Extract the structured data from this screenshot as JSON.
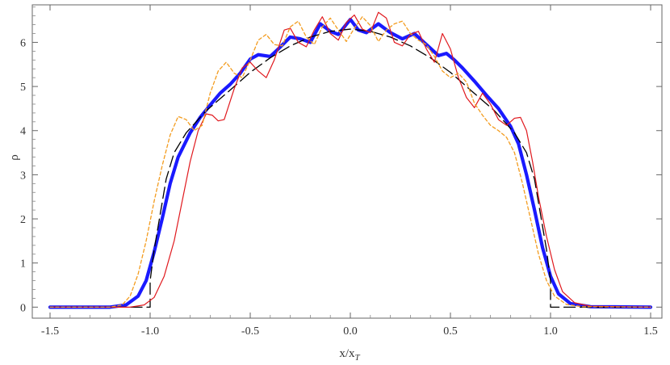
{
  "chart_data": {
    "type": "line",
    "title": "",
    "xlabel": "x/x",
    "xlabel_sub": "T",
    "ylabel": "ρ",
    "xlim": [
      -1.5,
      1.5
    ],
    "ylim": [
      -0.25,
      6.85
    ],
    "x_ticks": [
      -1.5,
      -1.0,
      -0.5,
      0.0,
      0.5,
      1.0,
      1.5
    ],
    "x_tick_labels": [
      "-1.5",
      "-1.0",
      "-0.5",
      "0.0",
      "0.5",
      "1.0",
      "1.5"
    ],
    "y_ticks": [
      0,
      1,
      2,
      3,
      4,
      5,
      6
    ],
    "y_tick_labels": [
      "0",
      "1",
      "2",
      "3",
      "4",
      "5",
      "6"
    ],
    "grid": false,
    "series": [
      {
        "style": "dashed-black",
        "color": "#000000",
        "points": [
          [
            -1.5,
            0
          ],
          [
            -1.08,
            0
          ],
          [
            -1.0,
            0
          ],
          [
            -1.0,
            0.6
          ],
          [
            -0.98,
            1.3
          ],
          [
            -0.95,
            2.1
          ],
          [
            -0.92,
            2.9
          ],
          [
            -0.88,
            3.5
          ],
          [
            -0.82,
            3.95
          ],
          [
            -0.72,
            4.45
          ],
          [
            -0.6,
            4.92
          ],
          [
            -0.5,
            5.32
          ],
          [
            -0.4,
            5.65
          ],
          [
            -0.3,
            5.92
          ],
          [
            -0.2,
            6.12
          ],
          [
            -0.1,
            6.25
          ],
          [
            0,
            6.3
          ],
          [
            0.1,
            6.25
          ],
          [
            0.2,
            6.12
          ],
          [
            0.3,
            5.92
          ],
          [
            0.4,
            5.65
          ],
          [
            0.5,
            5.32
          ],
          [
            0.6,
            4.92
          ],
          [
            0.72,
            4.45
          ],
          [
            0.82,
            3.95
          ],
          [
            0.88,
            3.5
          ],
          [
            0.92,
            2.9
          ],
          [
            0.95,
            2.1
          ],
          [
            0.98,
            1.3
          ],
          [
            1.0,
            0.6
          ],
          [
            1.0,
            0
          ],
          [
            1.08,
            0
          ],
          [
            1.5,
            0
          ]
        ]
      },
      {
        "style": "solid-blue-thick",
        "color": "#1a1aff",
        "points": [
          [
            -1.5,
            0
          ],
          [
            -1.2,
            0
          ],
          [
            -1.12,
            0.05
          ],
          [
            -1.06,
            0.25
          ],
          [
            -1.02,
            0.6
          ],
          [
            -0.98,
            1.25
          ],
          [
            -0.94,
            2.0
          ],
          [
            -0.9,
            2.8
          ],
          [
            -0.86,
            3.4
          ],
          [
            -0.8,
            3.95
          ],
          [
            -0.75,
            4.3
          ],
          [
            -0.7,
            4.58
          ],
          [
            -0.65,
            4.85
          ],
          [
            -0.6,
            5.05
          ],
          [
            -0.55,
            5.3
          ],
          [
            -0.5,
            5.62
          ],
          [
            -0.46,
            5.72
          ],
          [
            -0.4,
            5.68
          ],
          [
            -0.36,
            5.85
          ],
          [
            -0.3,
            6.12
          ],
          [
            -0.25,
            6.08
          ],
          [
            -0.2,
            6.0
          ],
          [
            -0.15,
            6.42
          ],
          [
            -0.1,
            6.25
          ],
          [
            -0.06,
            6.18
          ],
          [
            0,
            6.52
          ],
          [
            0.04,
            6.28
          ],
          [
            0.08,
            6.22
          ],
          [
            0.14,
            6.42
          ],
          [
            0.2,
            6.22
          ],
          [
            0.26,
            6.08
          ],
          [
            0.32,
            6.2
          ],
          [
            0.38,
            5.95
          ],
          [
            0.44,
            5.7
          ],
          [
            0.48,
            5.75
          ],
          [
            0.52,
            5.6
          ],
          [
            0.56,
            5.42
          ],
          [
            0.62,
            5.12
          ],
          [
            0.68,
            4.8
          ],
          [
            0.74,
            4.5
          ],
          [
            0.8,
            4.1
          ],
          [
            0.84,
            3.7
          ],
          [
            0.88,
            3.0
          ],
          [
            0.92,
            2.2
          ],
          [
            0.96,
            1.35
          ],
          [
            1.0,
            0.7
          ],
          [
            1.04,
            0.3
          ],
          [
            1.1,
            0.08
          ],
          [
            1.2,
            0.01
          ],
          [
            1.5,
            0
          ]
        ]
      },
      {
        "style": "solid-red",
        "color": "#e0191e",
        "points": [
          [
            -1.5,
            0
          ],
          [
            -1.1,
            0
          ],
          [
            -1.03,
            0.05
          ],
          [
            -0.98,
            0.22
          ],
          [
            -0.93,
            0.7
          ],
          [
            -0.88,
            1.5
          ],
          [
            -0.84,
            2.4
          ],
          [
            -0.8,
            3.3
          ],
          [
            -0.76,
            4.0
          ],
          [
            -0.72,
            4.38
          ],
          [
            -0.69,
            4.35
          ],
          [
            -0.66,
            4.22
          ],
          [
            -0.63,
            4.25
          ],
          [
            -0.58,
            4.95
          ],
          [
            -0.54,
            5.42
          ],
          [
            -0.5,
            5.55
          ],
          [
            -0.46,
            5.35
          ],
          [
            -0.42,
            5.2
          ],
          [
            -0.38,
            5.6
          ],
          [
            -0.33,
            6.28
          ],
          [
            -0.3,
            6.32
          ],
          [
            -0.26,
            6.0
          ],
          [
            -0.22,
            5.9
          ],
          [
            -0.18,
            6.28
          ],
          [
            -0.14,
            6.58
          ],
          [
            -0.1,
            6.2
          ],
          [
            -0.06,
            6.05
          ],
          [
            -0.02,
            6.45
          ],
          [
            0.02,
            6.62
          ],
          [
            0.06,
            6.3
          ],
          [
            0.1,
            6.22
          ],
          [
            0.14,
            6.68
          ],
          [
            0.18,
            6.55
          ],
          [
            0.22,
            6.0
          ],
          [
            0.26,
            5.92
          ],
          [
            0.3,
            6.18
          ],
          [
            0.34,
            6.25
          ],
          [
            0.38,
            5.85
          ],
          [
            0.42,
            5.55
          ],
          [
            0.46,
            6.2
          ],
          [
            0.5,
            5.85
          ],
          [
            0.54,
            5.2
          ],
          [
            0.58,
            4.75
          ],
          [
            0.62,
            4.52
          ],
          [
            0.66,
            4.85
          ],
          [
            0.7,
            4.6
          ],
          [
            0.74,
            4.25
          ],
          [
            0.78,
            4.12
          ],
          [
            0.82,
            4.28
          ],
          [
            0.85,
            4.3
          ],
          [
            0.88,
            4.0
          ],
          [
            0.91,
            3.3
          ],
          [
            0.94,
            2.5
          ],
          [
            0.98,
            1.6
          ],
          [
            1.02,
            0.85
          ],
          [
            1.06,
            0.35
          ],
          [
            1.12,
            0.1
          ],
          [
            1.2,
            0.02
          ],
          [
            1.5,
            0
          ]
        ]
      },
      {
        "style": "dashed-orange",
        "color": "#f39c1f",
        "points": [
          [
            -1.5,
            0
          ],
          [
            -1.2,
            0
          ],
          [
            -1.14,
            0.05
          ],
          [
            -1.1,
            0.25
          ],
          [
            -1.06,
            0.75
          ],
          [
            -1.02,
            1.5
          ],
          [
            -0.98,
            2.4
          ],
          [
            -0.94,
            3.2
          ],
          [
            -0.9,
            3.9
          ],
          [
            -0.86,
            4.32
          ],
          [
            -0.82,
            4.25
          ],
          [
            -0.78,
            4.0
          ],
          [
            -0.74,
            4.12
          ],
          [
            -0.7,
            4.85
          ],
          [
            -0.66,
            5.35
          ],
          [
            -0.62,
            5.55
          ],
          [
            -0.58,
            5.3
          ],
          [
            -0.54,
            5.2
          ],
          [
            -0.5,
            5.6
          ],
          [
            -0.46,
            6.05
          ],
          [
            -0.42,
            6.18
          ],
          [
            -0.38,
            5.95
          ],
          [
            -0.34,
            5.92
          ],
          [
            -0.3,
            6.35
          ],
          [
            -0.26,
            6.48
          ],
          [
            -0.22,
            6.12
          ],
          [
            -0.18,
            5.95
          ],
          [
            -0.14,
            6.35
          ],
          [
            -0.1,
            6.55
          ],
          [
            -0.06,
            6.28
          ],
          [
            -0.02,
            6.02
          ],
          [
            0.02,
            6.32
          ],
          [
            0.06,
            6.58
          ],
          [
            0.1,
            6.38
          ],
          [
            0.14,
            6.02
          ],
          [
            0.18,
            6.28
          ],
          [
            0.22,
            6.42
          ],
          [
            0.26,
            6.48
          ],
          [
            0.3,
            6.2
          ],
          [
            0.34,
            6.05
          ],
          [
            0.38,
            5.95
          ],
          [
            0.42,
            5.68
          ],
          [
            0.46,
            5.35
          ],
          [
            0.5,
            5.2
          ],
          [
            0.54,
            5.3
          ],
          [
            0.58,
            5.1
          ],
          [
            0.62,
            4.62
          ],
          [
            0.66,
            4.35
          ],
          [
            0.7,
            4.12
          ],
          [
            0.74,
            4.0
          ],
          [
            0.78,
            3.85
          ],
          [
            0.82,
            3.5
          ],
          [
            0.86,
            2.8
          ],
          [
            0.9,
            2.0
          ],
          [
            0.94,
            1.2
          ],
          [
            0.98,
            0.6
          ],
          [
            1.02,
            0.25
          ],
          [
            1.08,
            0.06
          ],
          [
            1.16,
            0.01
          ],
          [
            1.5,
            0
          ]
        ]
      }
    ]
  }
}
